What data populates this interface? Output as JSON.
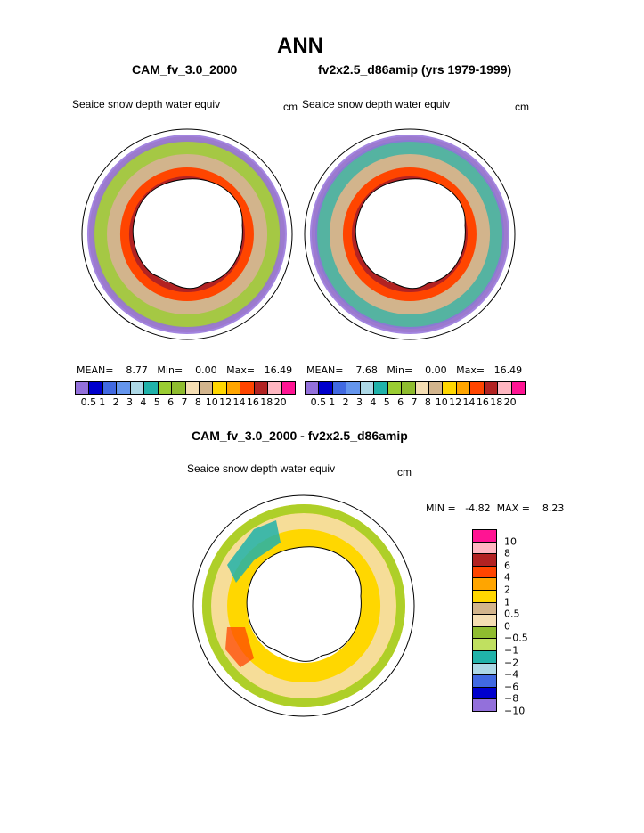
{
  "title": "ANN",
  "panels": [
    {
      "case_title": "CAM_fv_3.0_2000",
      "variable": "Seaice snow depth water equiv",
      "units": "cm",
      "mean_label": "MEAN=",
      "mean_value": "8.77",
      "min_label": "Min=",
      "min_value": "0.00",
      "max_label": "Max=",
      "max_value": "16.49"
    },
    {
      "case_title": "fv2x2.5_d86amip (yrs 1979-1999)",
      "variable": "Seaice snow depth water equiv",
      "units": "cm",
      "mean_label": "MEAN=",
      "mean_value": "7.68",
      "min_label": "Min=",
      "min_value": "0.00",
      "max_label": "Max=",
      "max_value": "16.49"
    }
  ],
  "field_colorbar": {
    "labels": [
      "0.5",
      "1",
      "2",
      "3",
      "4",
      "5",
      "6",
      "7",
      "8",
      "10",
      "12",
      "14",
      "16",
      "18",
      "20"
    ],
    "colors": [
      "#9370db",
      "#0000cd",
      "#4169e1",
      "#6495ed",
      "#add8e6",
      "#20b2aa",
      "#9acd32",
      "#8fbc2f",
      "#f5deb3",
      "#d2b48c",
      "#ffd700",
      "#ffa500",
      "#ff4500",
      "#b22222",
      "#ffb6c1",
      "#ff1493"
    ]
  },
  "difference": {
    "title": "CAM_fv_3.0_2000 - fv2x2.5_d86amip",
    "variable": "Seaice snow depth water equiv",
    "units": "cm",
    "min_label": "MIN =",
    "min_value": "-4.82",
    "max_label": "MAX =",
    "max_value": "8.23",
    "colorbar_labels": [
      "10",
      "8",
      "6",
      "4",
      "2",
      "1",
      "0.5",
      "0",
      "−0.5",
      "−1",
      "−2",
      "−4",
      "−6",
      "−8",
      "−10"
    ],
    "colorbar_colors": [
      "#ff1493",
      "#ffb6c1",
      "#b22222",
      "#ff4500",
      "#ffa500",
      "#ffd700",
      "#d2b48c",
      "#f5deb3",
      "#8fbc2f",
      "#c0e060",
      "#20b2aa",
      "#add8e6",
      "#4169e1",
      "#0000cd",
      "#9370db"
    ]
  }
}
